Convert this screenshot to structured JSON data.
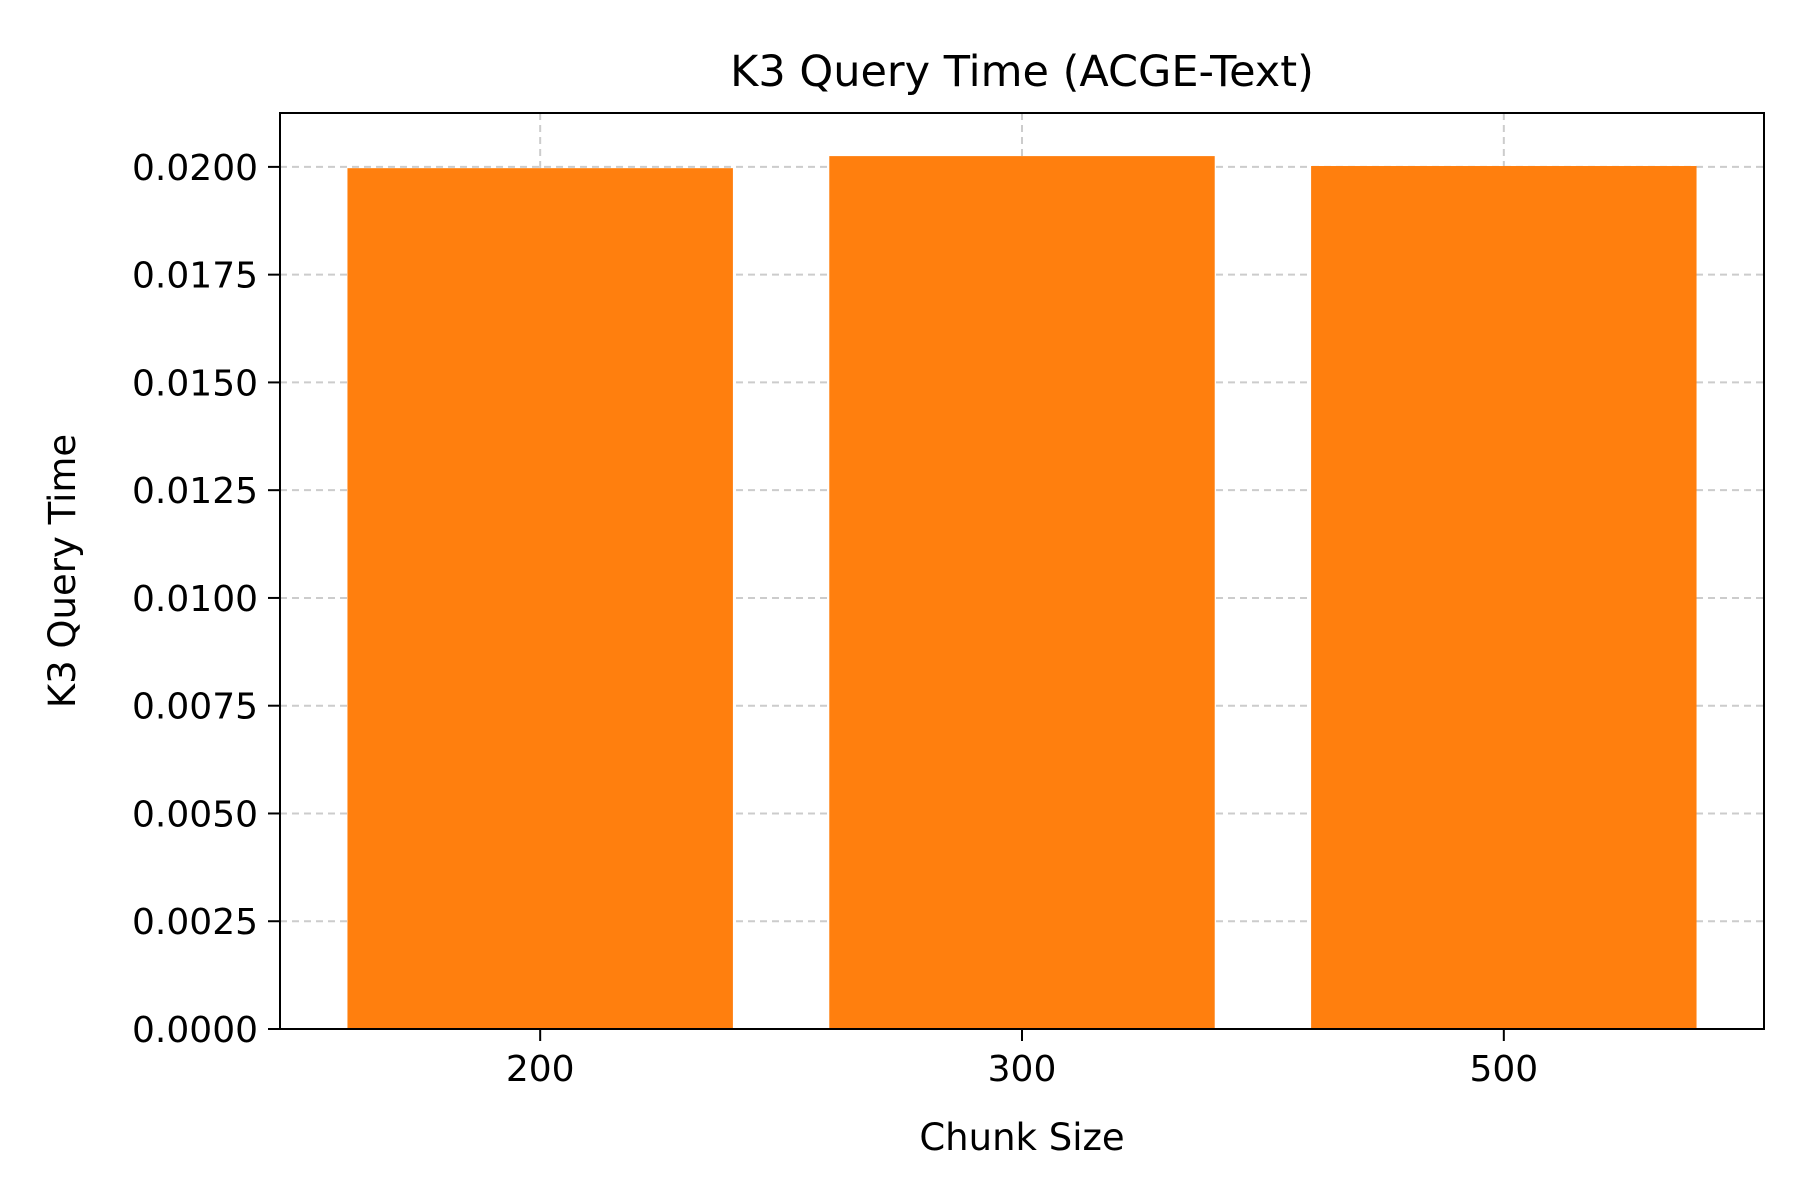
{
  "chart_data": {
    "type": "bar",
    "title": "K3 Query Time (ACGE-Text)",
    "xlabel": "Chunk Size",
    "ylabel": "K3 Query Time",
    "categories": [
      "200",
      "300",
      "500"
    ],
    "values": [
      0.01997,
      0.02025,
      0.02002
    ],
    "ylim": [
      0,
      0.02125
    ],
    "yticks": [
      0.0,
      0.0025,
      0.005,
      0.0075,
      0.01,
      0.0125,
      0.015,
      0.0175,
      0.02
    ],
    "ytick_labels": [
      "0.0000",
      "0.0025",
      "0.0050",
      "0.0075",
      "0.0100",
      "0.0125",
      "0.0150",
      "0.0175",
      "0.0200"
    ],
    "grid": true,
    "legend": "none",
    "colors": {
      "bar": "#ff7f0e",
      "grid": "#cccccc",
      "axes": "#000000"
    }
  }
}
